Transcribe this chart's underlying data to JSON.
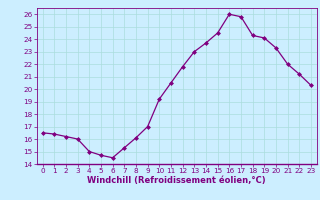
{
  "x": [
    0,
    1,
    2,
    3,
    4,
    5,
    6,
    7,
    8,
    9,
    10,
    11,
    12,
    13,
    14,
    15,
    16,
    17,
    18,
    19,
    20,
    21,
    22,
    23
  ],
  "y": [
    16.5,
    16.4,
    16.2,
    16.0,
    15.0,
    14.7,
    14.5,
    15.3,
    16.1,
    17.0,
    19.2,
    20.5,
    21.8,
    23.0,
    23.7,
    24.5,
    26.0,
    25.8,
    24.3,
    24.1,
    23.3,
    22.0,
    21.2,
    20.3
  ],
  "xlim": [
    -0.5,
    23.5
  ],
  "ylim": [
    14,
    26.5
  ],
  "yticks": [
    14,
    15,
    16,
    17,
    18,
    19,
    20,
    21,
    22,
    23,
    24,
    25,
    26
  ],
  "xticks": [
    0,
    1,
    2,
    3,
    4,
    5,
    6,
    7,
    8,
    9,
    10,
    11,
    12,
    13,
    14,
    15,
    16,
    17,
    18,
    19,
    20,
    21,
    22,
    23
  ],
  "xlabel": "Windchill (Refroidissement éolien,°C)",
  "line_color": "#800080",
  "marker": "D",
  "bg_color": "#cceeff",
  "grid_color": "#aadddd",
  "marker_size": 2.0,
  "line_width": 0.9,
  "tick_fontsize": 5.2,
  "xlabel_fontsize": 6.0
}
